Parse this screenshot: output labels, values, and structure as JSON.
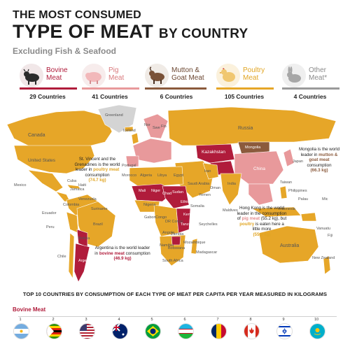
{
  "header": {
    "title_line1": "THE MOST CONSUMED",
    "title_line2_main": "TYPE OF MEAT",
    "title_line2_suffix": "BY COUNTRY",
    "subtitle": "Excluding Fish & Seafood"
  },
  "legend": [
    {
      "label": "Bovine\nMeat",
      "count": "29 Countries",
      "color": "#b01c3b",
      "icon": "cow-icon"
    },
    {
      "label": "Pig\nMeat",
      "count": "41 Countries",
      "color": "#e8999b",
      "icon": "pig-icon"
    },
    {
      "label": "Mutton &\nGoat Meat",
      "count": "6 Countries",
      "color": "#8b5a3c",
      "icon": "goat-icon"
    },
    {
      "label": "Poultry\nMeat",
      "count": "105 Countries",
      "color": "#e6a628",
      "icon": "chicken-icon"
    },
    {
      "label": "Other\nMeat*",
      "count": "4 Countries",
      "color": "#9a9a9a",
      "icon": "rabbit-icon"
    }
  ],
  "map": {
    "country_labels": [
      "Canada",
      "United States",
      "Mexico",
      "Cuba",
      "Haiti",
      "Jamaica",
      "Venezuela",
      "Colombia",
      "Ecuador",
      "Peru",
      "Brazil",
      "Suriname",
      "Bolivia",
      "Chile",
      "Argentina",
      "Greenland",
      "Iceland",
      "Nor",
      "Swe",
      "Fin",
      "Russia",
      "Portugal",
      "Morocco",
      "Algeria",
      "Libya",
      "Egypt",
      "Mali",
      "Niger",
      "Chad",
      "Sudan",
      "Ethiopia",
      "Nigeria",
      "Congo",
      "DR Congo",
      "Angola",
      "Tanzania",
      "Kenya",
      "Somalia",
      "Zambia",
      "Namibia",
      "Botswana",
      "South Africa",
      "Madagascar",
      "Mozambique",
      "Gabon",
      "Seychelles",
      "Kazakhstan",
      "Mongolia",
      "China",
      "Japan",
      "India",
      "Iran",
      "Saudi Arabia",
      "Oman",
      "Yemen",
      "Maldives",
      "Indonesia",
      "Philippines",
      "Taiwan",
      "Australia",
      "New Zealand",
      "Vanuatu",
      "Fiji",
      "Mic",
      "Palau"
    ],
    "callouts": {
      "vincent": {
        "pre": "St. Vincent and the Grenadines is the world leader in ",
        "em": "poultry meat",
        "post": " consumption",
        "value": "(74.7 kg)"
      },
      "mongolia": {
        "pre": "Mongolia is the world leader in ",
        "em": "mutton & goat meat",
        "post": " consumption",
        "value": "(66.3 kg)"
      },
      "hongkong": {
        "pre": "Hong Kong is the world leader in the consumption of ",
        "em": "pig meat",
        "post": " (55.2 kg), but ",
        "em2": "poultry",
        "post2": " is eaten here a little more",
        "value": "(55.5 kg)"
      },
      "argentina": {
        "pre": "Argentina is the world leader in ",
        "em": "bovine meat",
        "post": " consumption",
        "value": "(46.9 kg)"
      }
    }
  },
  "bottom": {
    "title": "TOP 10 COUNTRIES BY CONSUMPTION OF EACH TYPE OF MEAT PER CAPITA PER YEAR MEASURED IN KILOGRAMS",
    "section": "Bovine Meat",
    "ranks": [
      "1",
      "2",
      "3",
      "4",
      "5",
      "6",
      "7",
      "8",
      "9",
      "10"
    ],
    "flags": [
      "argentina-flag",
      "zimbabwe-flag",
      "usa-flag",
      "australia-flag",
      "brazil-flag",
      "uzbekistan-flag",
      "chad-flag",
      "canada-flag",
      "israel-flag",
      "kazakhstan-flag"
    ]
  }
}
